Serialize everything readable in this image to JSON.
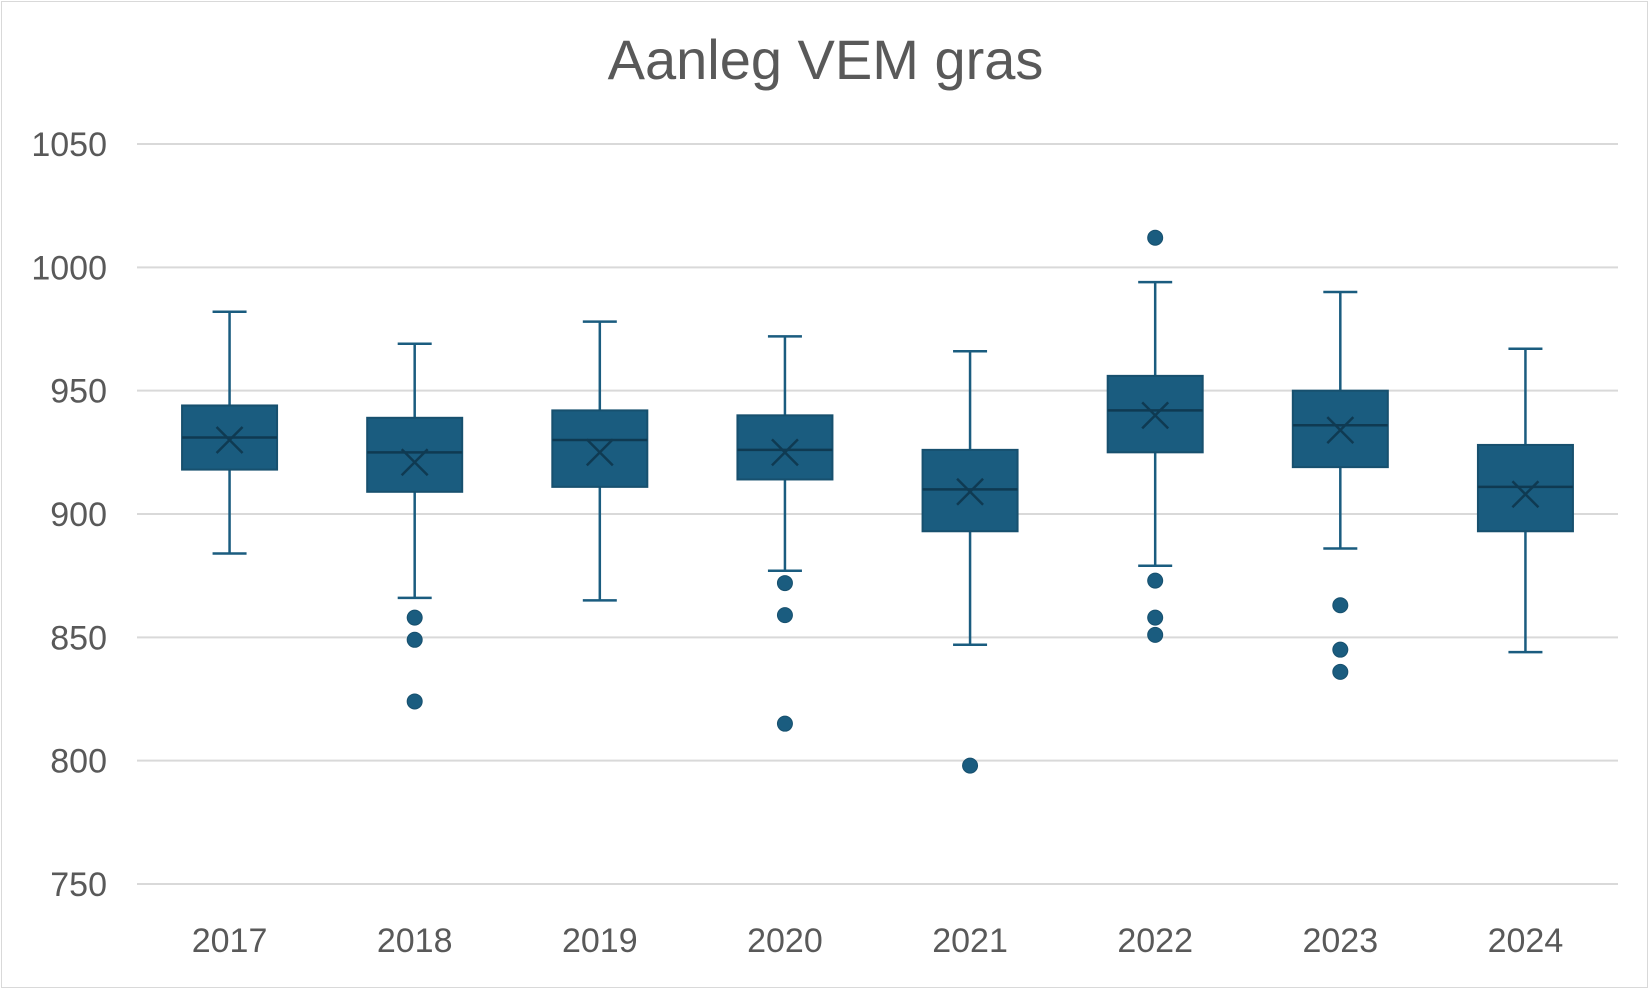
{
  "chart_data": {
    "type": "box",
    "title": "Aanleg VEM gras",
    "xlabel": "",
    "ylabel": "",
    "ylim": [
      750,
      1050
    ],
    "yticks": [
      750,
      800,
      850,
      900,
      950,
      1000,
      1050
    ],
    "grid": true,
    "legend": "none",
    "color": "#1a5c7f",
    "categories": [
      "2017",
      "2018",
      "2019",
      "2020",
      "2021",
      "2022",
      "2023",
      "2024"
    ],
    "boxes": [
      {
        "category": "2017",
        "whisker_low": 884,
        "q1": 918,
        "median": 931,
        "q3": 944,
        "whisker_high": 982,
        "mean": 930,
        "outliers": []
      },
      {
        "category": "2018",
        "whisker_low": 866,
        "q1": 909,
        "median": 925,
        "q3": 939,
        "whisker_high": 969,
        "mean": 921,
        "outliers": [
          858,
          849,
          824
        ]
      },
      {
        "category": "2019",
        "whisker_low": 865,
        "q1": 911,
        "median": 930,
        "q3": 942,
        "whisker_high": 978,
        "mean": 925,
        "outliers": []
      },
      {
        "category": "2020",
        "whisker_low": 877,
        "q1": 914,
        "median": 926,
        "q3": 940,
        "whisker_high": 972,
        "mean": 925,
        "outliers": [
          872,
          859,
          815
        ]
      },
      {
        "category": "2021",
        "whisker_low": 847,
        "q1": 893,
        "median": 910,
        "q3": 926,
        "whisker_high": 966,
        "mean": 909,
        "outliers": [
          798
        ]
      },
      {
        "category": "2022",
        "whisker_low": 879,
        "q1": 925,
        "median": 942,
        "q3": 956,
        "whisker_high": 994,
        "mean": 940,
        "outliers": [
          1012,
          873,
          858,
          851
        ]
      },
      {
        "category": "2023",
        "whisker_low": 886,
        "q1": 919,
        "median": 936,
        "q3": 950,
        "whisker_high": 990,
        "mean": 934,
        "outliers": [
          863,
          845,
          836
        ]
      },
      {
        "category": "2024",
        "whisker_low": 844,
        "q1": 893,
        "median": 911,
        "q3": 928,
        "whisker_high": 967,
        "mean": 908,
        "outliers": []
      }
    ]
  }
}
